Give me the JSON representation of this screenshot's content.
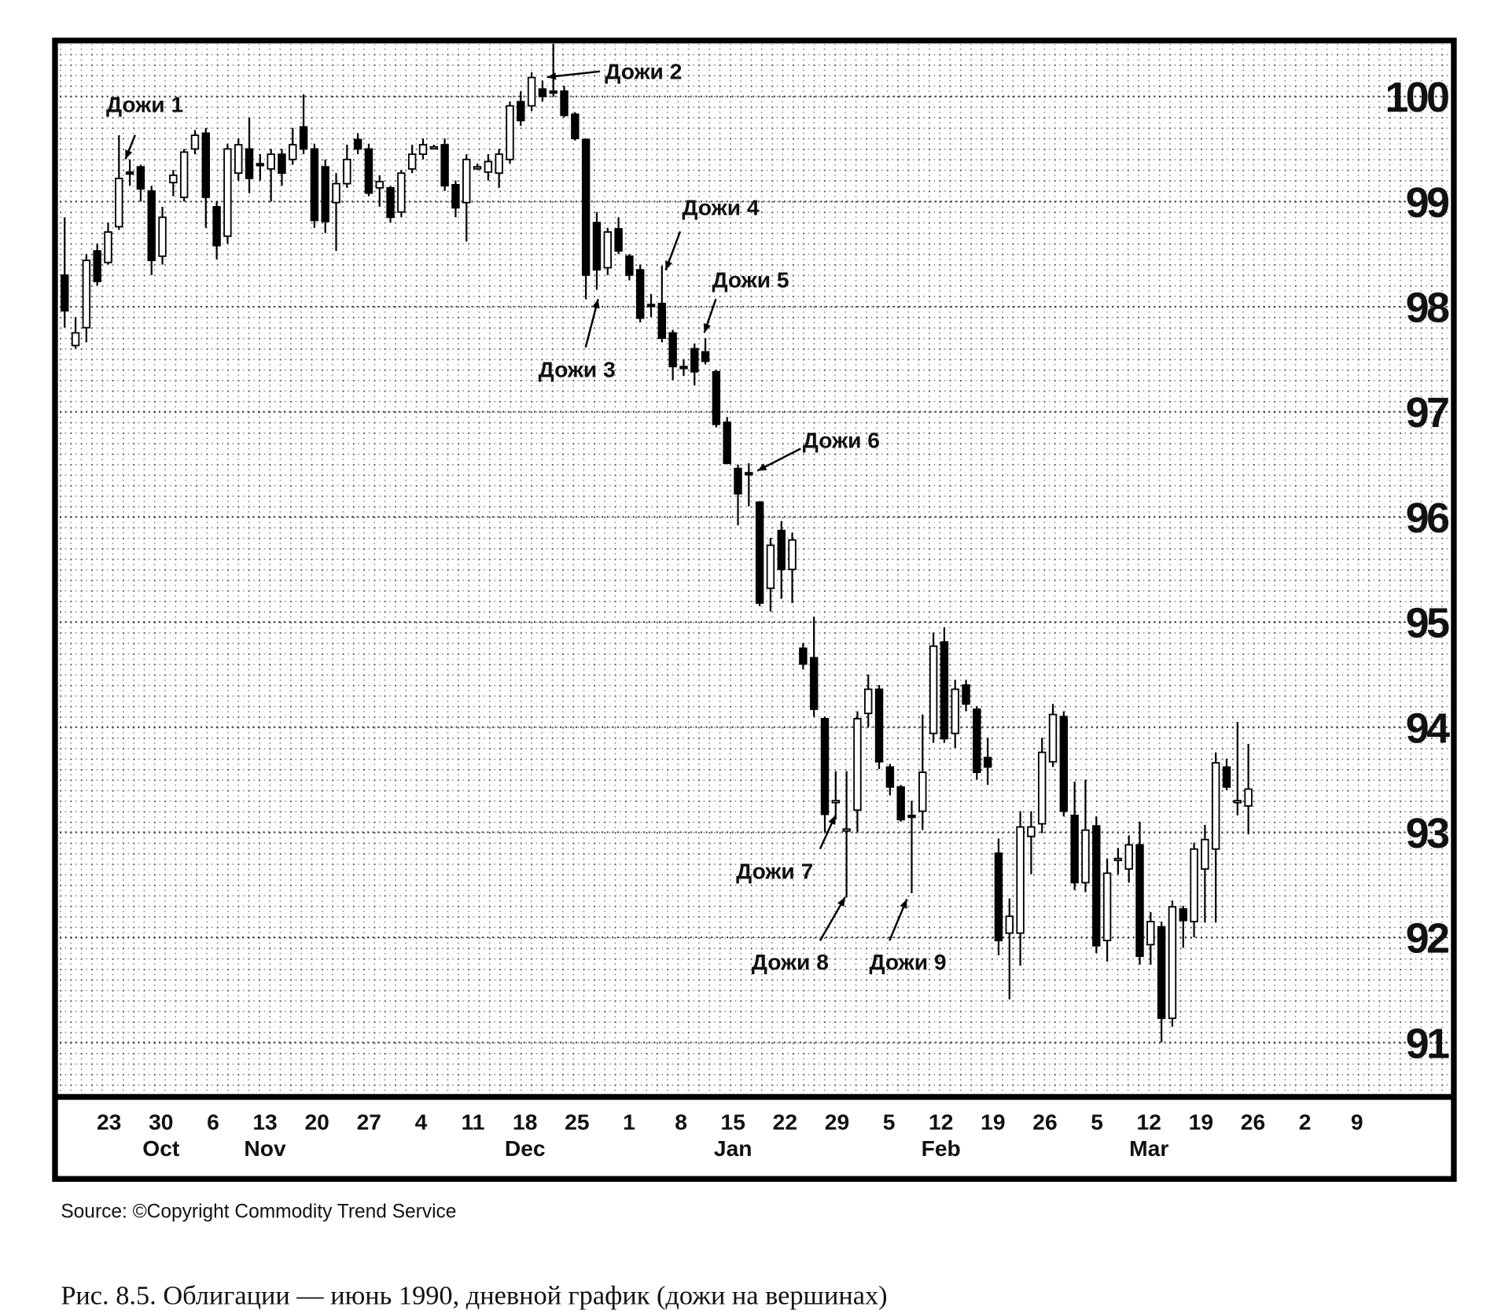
{
  "chart_data": {
    "type": "candlestick",
    "open": [
      98.3,
      97.63,
      97.8,
      98.53,
      98.42,
      98.76,
      99.28,
      99.33,
      99.1,
      98.48,
      99.18,
      99.04,
      99.5,
      99.65,
      98.95,
      98.67,
      99.27,
      99.5,
      99.36,
      99.31,
      99.45,
      99.4,
      99.71,
      99.5,
      99.33,
      98.99,
      99.17,
      99.59,
      99.5,
      99.13,
      99.13,
      98.9,
      99.31,
      99.45,
      99.52,
      99.54,
      99.16,
      98.99,
      99.33,
      99.28,
      99.27,
      99.4,
      99.95,
      99.91,
      100.07,
      100.05,
      100.05,
      99.83,
      99.59,
      98.8,
      98.37,
      98.74,
      98.48,
      98.35,
      98.02,
      98.03,
      97.75,
      97.43,
      97.6,
      97.57,
      97.38,
      96.9,
      96.46,
      96.42,
      96.14,
      95.32,
      95.87,
      95.5,
      94.75,
      94.66,
      94.08,
      93.3,
      93.02,
      93.21,
      94.13,
      94.36,
      93.62,
      93.43,
      93.16,
      93.2,
      93.94,
      94.81,
      93.94,
      94.4,
      94.17,
      93.71,
      92.8,
      92.04,
      92.04,
      92.96,
      93.08,
      93.67,
      94.1,
      93.16,
      92.52,
      93.06,
      91.97,
      92.75,
      92.65,
      92.88,
      91.93,
      92.1,
      91.23,
      92.27,
      92.15,
      92.65,
      92.84,
      93.62,
      93.3,
      93.25
    ],
    "high": [
      98.85,
      97.9,
      98.5,
      98.6,
      98.8,
      99.63,
      99.4,
      99.35,
      99.15,
      98.95,
      99.3,
      99.5,
      99.68,
      99.7,
      99.0,
      99.55,
      99.6,
      99.8,
      99.45,
      99.5,
      99.5,
      99.7,
      100.02,
      99.55,
      99.4,
      99.27,
      99.54,
      99.65,
      99.55,
      99.25,
      99.15,
      99.3,
      99.54,
      99.6,
      99.54,
      99.6,
      99.2,
      99.45,
      99.36,
      99.45,
      99.5,
      99.95,
      100.05,
      100.23,
      100.15,
      100.5,
      100.1,
      99.85,
      99.6,
      98.9,
      98.75,
      98.85,
      98.5,
      98.4,
      98.12,
      98.39,
      97.78,
      97.5,
      97.65,
      97.7,
      97.4,
      96.95,
      96.5,
      96.51,
      96.15,
      95.8,
      95.96,
      95.85,
      94.8,
      95.05,
      94.1,
      93.58,
      93.58,
      94.15,
      94.5,
      94.4,
      93.65,
      93.45,
      93.3,
      94.12,
      94.9,
      94.95,
      94.45,
      94.45,
      94.2,
      93.9,
      92.94,
      92.37,
      93.2,
      93.2,
      93.9,
      94.22,
      94.15,
      93.48,
      93.5,
      93.15,
      92.75,
      92.85,
      92.97,
      93.1,
      92.24,
      92.15,
      92.35,
      92.3,
      92.9,
      93.07,
      93.76,
      93.7,
      94.05,
      93.84
    ],
    "low": [
      97.8,
      97.6,
      97.66,
      98.2,
      98.4,
      98.73,
      99.15,
      99.0,
      98.3,
      98.4,
      99.05,
      99.0,
      99.45,
      98.75,
      98.45,
      98.6,
      99.2,
      99.08,
      99.2,
      99.0,
      99.15,
      99.35,
      99.45,
      98.75,
      98.7,
      98.53,
      99.13,
      99.45,
      99.05,
      98.95,
      98.8,
      98.85,
      99.27,
      99.4,
      99.5,
      99.1,
      98.85,
      98.62,
      99.3,
      99.2,
      99.13,
      99.36,
      99.72,
      99.86,
      99.95,
      100.0,
      99.8,
      99.58,
      98.07,
      98.16,
      98.3,
      98.5,
      98.25,
      97.85,
      97.9,
      97.66,
      97.3,
      97.34,
      97.25,
      97.45,
      96.85,
      96.5,
      95.92,
      96.1,
      95.15,
      95.1,
      95.22,
      95.18,
      94.55,
      94.1,
      93.0,
      93.12,
      92.38,
      93.0,
      94.0,
      93.6,
      93.35,
      93.1,
      92.42,
      93.02,
      93.85,
      93.85,
      93.8,
      94.15,
      93.5,
      93.45,
      91.83,
      91.41,
      91.73,
      92.6,
      92.99,
      93.62,
      93.15,
      92.45,
      92.43,
      91.85,
      91.77,
      92.6,
      92.52,
      91.74,
      91.74,
      91.0,
      91.15,
      91.9,
      92.0,
      92.14,
      92.14,
      93.4,
      93.16,
      92.98
    ],
    "close": [
      97.96,
      97.75,
      98.44,
      98.24,
      98.71,
      99.22,
      99.27,
      99.12,
      98.44,
      98.85,
      99.25,
      99.47,
      99.63,
      99.04,
      98.58,
      99.5,
      99.54,
      99.22,
      99.35,
      99.45,
      99.27,
      99.54,
      99.5,
      98.82,
      98.81,
      99.17,
      99.4,
      99.5,
      99.08,
      99.19,
      98.85,
      99.27,
      99.45,
      99.54,
      99.52,
      99.15,
      98.94,
      99.4,
      99.33,
      99.38,
      99.45,
      99.91,
      99.77,
      100.18,
      100.0,
      100.04,
      99.82,
      99.6,
      98.3,
      98.35,
      98.71,
      98.53,
      98.3,
      97.89,
      98.01,
      97.7,
      97.43,
      97.42,
      97.38,
      97.48,
      96.88,
      96.51,
      96.22,
      96.41,
      95.18,
      95.73,
      95.5,
      95.78,
      94.6,
      94.17,
      93.17,
      93.3,
      93.03,
      94.08,
      94.36,
      93.67,
      93.43,
      93.12,
      93.15,
      93.57,
      94.77,
      93.89,
      94.36,
      94.22,
      93.57,
      93.62,
      91.97,
      92.2,
      93.05,
      93.05,
      93.76,
      94.12,
      93.2,
      92.52,
      93.02,
      91.92,
      92.61,
      92.75,
      92.88,
      91.82,
      92.15,
      91.23,
      92.29,
      92.16,
      92.84,
      92.93,
      93.66,
      93.43,
      93.3,
      93.41
    ],
    "up_color": "#ffffff",
    "down_color": "#000000",
    "ylim": [
      90.5,
      100.55
    ],
    "yticks": [
      91,
      92,
      93,
      94,
      95,
      96,
      97,
      98,
      99,
      100
    ],
    "grid": true,
    "xticks": [
      {
        "day": "23"
      },
      {
        "day": "30",
        "month": "Oct"
      },
      {
        "day": "6"
      },
      {
        "day": "13",
        "month": "Nov"
      },
      {
        "day": "20"
      },
      {
        "day": "27"
      },
      {
        "day": "4"
      },
      {
        "day": "11"
      },
      {
        "day": "18",
        "month": "Dec"
      },
      {
        "day": "25"
      },
      {
        "day": "1"
      },
      {
        "day": "8"
      },
      {
        "day": "15",
        "month": "Jan"
      },
      {
        "day": "22"
      },
      {
        "day": "29"
      },
      {
        "day": "5"
      },
      {
        "day": "12",
        "month": "Feb"
      },
      {
        "day": "19"
      },
      {
        "day": "26"
      },
      {
        "day": "5"
      },
      {
        "day": "12",
        "month": "Mar"
      },
      {
        "day": "19"
      },
      {
        "day": "26"
      },
      {
        "day": "2"
      },
      {
        "day": "9"
      }
    ],
    "annotations": [
      "Дожи 1",
      "Дожи 2",
      "Дожи 3",
      "Дожи 4",
      "Дожи 5",
      "Дожи 6",
      "Дожи 7",
      "Дожи 8",
      "Дожи 9"
    ],
    "source": "Source:  ©Copyright Commodity Trend Service",
    "caption": "Рис. 8.5. Облигации — июнь 1990, дневной график (дожи на вершинах)"
  }
}
